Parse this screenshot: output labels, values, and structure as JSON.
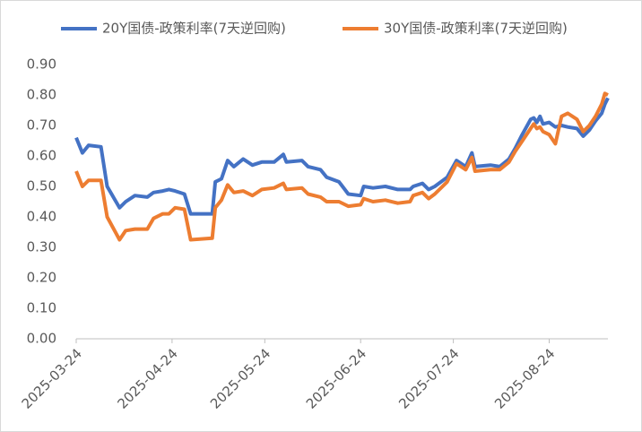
{
  "chart_data": {
    "type": "line",
    "x": [
      "2025-03-24",
      "2025-03-26",
      "2025-03-28",
      "2025-04-01",
      "2025-04-03",
      "2025-04-07",
      "2025-04-09",
      "2025-04-12",
      "2025-04-16",
      "2025-04-18",
      "2025-04-21",
      "2025-04-23",
      "2025-04-25",
      "2025-04-28",
      "2025-04-30",
      "2025-05-07",
      "2025-05-08",
      "2025-05-10",
      "2025-05-12",
      "2025-05-14",
      "2025-05-17",
      "2025-05-20",
      "2025-05-23",
      "2025-05-27",
      "2025-05-30",
      "2025-05-31",
      "2025-06-05",
      "2025-06-07",
      "2025-06-11",
      "2025-06-13",
      "2025-06-17",
      "2025-06-20",
      "2025-06-24",
      "2025-06-25",
      "2025-06-28",
      "2025-07-02",
      "2025-07-06",
      "2025-07-10",
      "2025-07-11",
      "2025-07-14",
      "2025-07-16",
      "2025-07-18",
      "2025-07-22",
      "2025-07-25",
      "2025-07-28",
      "2025-07-30",
      "2025-07-31",
      "2025-08-05",
      "2025-08-08",
      "2025-08-11",
      "2025-08-13",
      "2025-08-15",
      "2025-08-18",
      "2025-08-19",
      "2025-08-20",
      "2025-08-21",
      "2025-08-22",
      "2025-08-24",
      "2025-08-26",
      "2025-08-28",
      "2025-08-30",
      "2025-09-02",
      "2025-09-04",
      "2025-09-06",
      "2025-09-08",
      "2025-09-10",
      "2025-09-11",
      "2025-09-12"
    ],
    "series": [
      {
        "name": "20Y国债-政策利率(7天逆回购)",
        "color": "#4472c4",
        "values": [
          0.66,
          0.61,
          0.635,
          0.63,
          0.5,
          0.43,
          0.45,
          0.47,
          0.465,
          0.48,
          0.485,
          0.49,
          0.485,
          0.475,
          0.41,
          0.41,
          0.515,
          0.525,
          0.585,
          0.565,
          0.59,
          0.57,
          0.58,
          0.58,
          0.605,
          0.58,
          0.585,
          0.565,
          0.555,
          0.53,
          0.515,
          0.475,
          0.47,
          0.5,
          0.495,
          0.5,
          0.49,
          0.49,
          0.5,
          0.51,
          0.49,
          0.5,
          0.53,
          0.585,
          0.565,
          0.61,
          0.565,
          0.57,
          0.565,
          0.59,
          0.625,
          0.665,
          0.72,
          0.725,
          0.71,
          0.73,
          0.705,
          0.71,
          0.695,
          0.7,
          0.695,
          0.69,
          0.665,
          0.685,
          0.715,
          0.74,
          0.77,
          0.79
        ]
      },
      {
        "name": "30Y国债-政策利率(7天逆回购)",
        "color": "#ed7d31",
        "values": [
          0.55,
          0.5,
          0.52,
          0.52,
          0.4,
          0.325,
          0.355,
          0.36,
          0.36,
          0.395,
          0.41,
          0.41,
          0.43,
          0.425,
          0.325,
          0.33,
          0.43,
          0.455,
          0.505,
          0.48,
          0.485,
          0.47,
          0.49,
          0.495,
          0.51,
          0.49,
          0.495,
          0.475,
          0.465,
          0.45,
          0.45,
          0.435,
          0.44,
          0.46,
          0.45,
          0.455,
          0.445,
          0.45,
          0.47,
          0.48,
          0.46,
          0.475,
          0.515,
          0.575,
          0.555,
          0.595,
          0.55,
          0.555,
          0.555,
          0.58,
          0.615,
          0.645,
          0.69,
          0.705,
          0.69,
          0.695,
          0.68,
          0.67,
          0.64,
          0.73,
          0.74,
          0.72,
          0.68,
          0.7,
          0.73,
          0.77,
          0.805,
          0.8
        ]
      }
    ],
    "xlim": [
      "2025-03-24",
      "2025-09-12"
    ],
    "xticks": [
      "2025-03-24",
      "2025-04-24",
      "2025-05-24",
      "2025-06-24",
      "2025-07-24",
      "2025-08-24"
    ],
    "ylim": [
      0,
      0.9
    ],
    "yticks": [
      {
        "value": 0,
        "label": "0.00"
      },
      {
        "value": 0.1,
        "label": "0.10"
      },
      {
        "value": 0.2,
        "label": "0.20"
      },
      {
        "value": 0.3,
        "label": "0.30"
      },
      {
        "value": 0.4,
        "label": "0.40"
      },
      {
        "value": 0.5,
        "label": "0.50"
      },
      {
        "value": 0.6,
        "label": "0.60"
      },
      {
        "value": 0.7,
        "label": "0.70"
      },
      {
        "value": 0.8,
        "label": "0.80"
      },
      {
        "value": 0.9,
        "label": "0.90"
      }
    ],
    "grid": false,
    "legend": "top"
  }
}
